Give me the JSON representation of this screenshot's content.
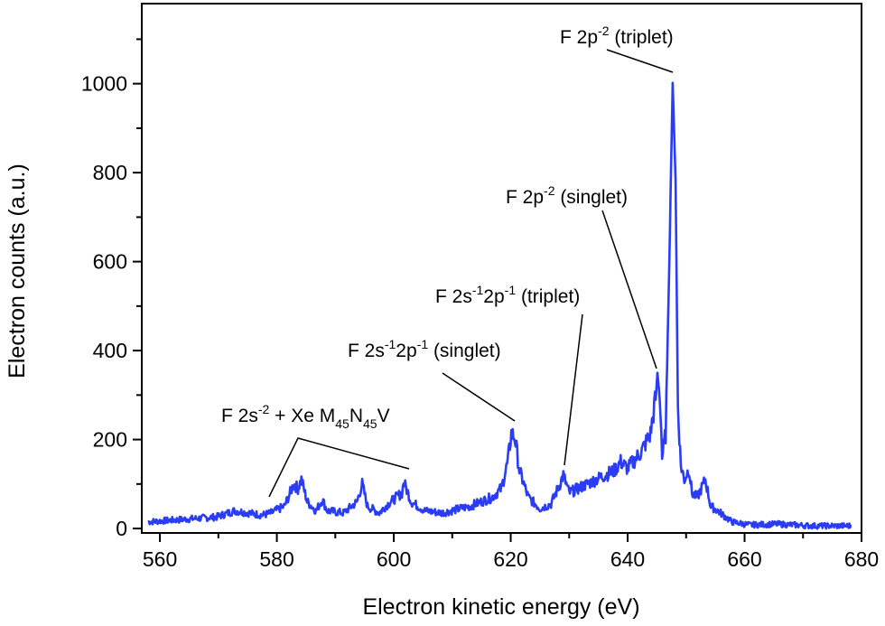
{
  "chart_data": {
    "type": "line",
    "title": "",
    "xlabel": "Electron kinetic energy (eV)",
    "ylabel": "Electron counts (a.u.)",
    "xlim": [
      556.9,
      680
    ],
    "ylim": [
      -10,
      1180
    ],
    "grid": false,
    "x_ticks": [
      560,
      580,
      600,
      620,
      640,
      660,
      680
    ],
    "y_ticks": [
      0,
      200,
      400,
      600,
      800,
      1000
    ],
    "line_color": "#2a3cf5",
    "series": [
      {
        "x": [
          558,
          563.5,
          569.7,
          572.8,
          577.5,
          579,
          581.3,
          582.9,
          583.6,
          584.2,
          585.2,
          586.7,
          587.8,
          588.6,
          591.4,
          593.7,
          594.6,
          595.5,
          597.5,
          599,
          601.4,
          601.7,
          603,
          605.3,
          608.3,
          613,
          616.8,
          618.4,
          619.5,
          620.1,
          620.7,
          621.5,
          623,
          625,
          626.9,
          628.4,
          629,
          630,
          632.3,
          634.6,
          637.7,
          638.8,
          640,
          642.3,
          643.9,
          644.8,
          645.1,
          645.6,
          645.9,
          646.5,
          647.1,
          647.7,
          648.2,
          648.6,
          649.1,
          649.7,
          650.5,
          651,
          651.9,
          653.3,
          654.2,
          655.4,
          657.8,
          660.8,
          665.5,
          671.7,
          678.3
        ],
        "y": [
          15,
          20,
          26,
          40,
          30,
          35,
          50,
          100,
          90,
          110,
          60,
          40,
          65,
          40,
          35,
          60,
          100,
          50,
          35,
          55,
          80,
          105,
          60,
          40,
          35,
          50,
          70,
          90,
          150,
          213,
          205,
          130,
          70,
          45,
          55,
          100,
          120,
          80,
          95,
          110,
          130,
          150,
          135,
          172,
          213,
          295,
          350,
          275,
          160,
          213,
          580,
          1002,
          782,
          275,
          142,
          110,
          135,
          80,
          70,
          110,
          50,
          40,
          15,
          8,
          10,
          6,
          6
        ]
      }
    ],
    "annotations": [
      {
        "id": "triplet-2p",
        "parts": [
          {
            "t": "F 2p",
            "k": "n"
          },
          {
            "t": "-2",
            "k": "sup"
          },
          {
            "t": " (triplet)",
            "k": "n"
          }
        ]
      },
      {
        "id": "singlet-2p",
        "parts": [
          {
            "t": "F 2p",
            "k": "n"
          },
          {
            "t": "-2",
            "k": "sup"
          },
          {
            "t": " (singlet)",
            "k": "n"
          }
        ]
      },
      {
        "id": "triplet-2s2p",
        "parts": [
          {
            "t": "F 2s",
            "k": "n"
          },
          {
            "t": "-1",
            "k": "sup"
          },
          {
            "t": "2p",
            "k": "n"
          },
          {
            "t": "-1",
            "k": "sup"
          },
          {
            "t": " (triplet)",
            "k": "n"
          }
        ]
      },
      {
        "id": "singlet-2s2p",
        "parts": [
          {
            "t": "F 2s",
            "k": "n"
          },
          {
            "t": "-1",
            "k": "sup"
          },
          {
            "t": "2p",
            "k": "n"
          },
          {
            "t": "-1",
            "k": "sup"
          },
          {
            "t": " (singlet)",
            "k": "n"
          }
        ]
      },
      {
        "id": "2s2-xe",
        "parts": [
          {
            "t": "F 2s",
            "k": "n"
          },
          {
            "t": "-2",
            "k": "sup"
          },
          {
            "t": " + Xe M",
            "k": "n"
          },
          {
            "t": "45",
            "k": "sub"
          },
          {
            "t": "N",
            "k": "n"
          },
          {
            "t": "45",
            "k": "sub"
          },
          {
            "t": "V",
            "k": "n"
          }
        ]
      }
    ]
  }
}
